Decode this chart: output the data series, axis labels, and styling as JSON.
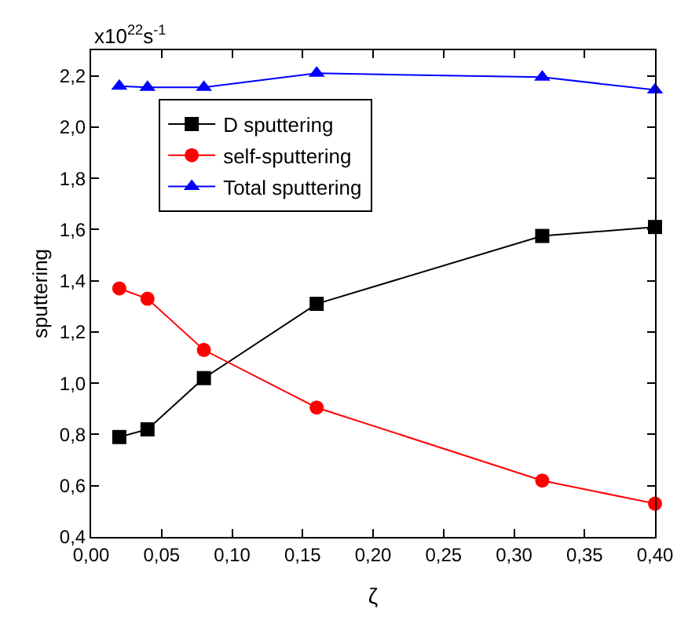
{
  "chart_data": {
    "type": "line",
    "xlabel": "ζ",
    "ylabel": "sputtering",
    "annotations": [
      "x10$^{22}$s$^{-1}$"
    ],
    "x": [
      0.02,
      0.04,
      0.08,
      0.16,
      0.32,
      0.4
    ],
    "series": [
      {
        "name": "D sputtering",
        "color": "#000000",
        "marker": "square",
        "values": [
          0.79,
          0.82,
          1.02,
          1.31,
          1.575,
          1.61
        ]
      },
      {
        "name": "self-sputtering",
        "color": "#ff0000",
        "marker": "circle",
        "values": [
          1.37,
          1.33,
          1.13,
          0.905,
          0.62,
          0.53
        ]
      },
      {
        "name": "Total sputtering",
        "color": "#0000ff",
        "marker": "triangle",
        "values": [
          2.16,
          2.155,
          2.155,
          2.21,
          2.195,
          2.145
        ]
      }
    ],
    "xlim": [
      0,
      0.4
    ],
    "ylim": [
      0.4,
      2.3
    ],
    "xticks": [
      {
        "value": 0,
        "label": "0,00"
      },
      {
        "value": 0.05,
        "label": "0,05"
      },
      {
        "value": 0.1,
        "label": "0,10"
      },
      {
        "value": 0.15,
        "label": "0,15"
      },
      {
        "value": 0.2,
        "label": "0,20"
      },
      {
        "value": 0.25,
        "label": "0,25"
      },
      {
        "value": 0.3,
        "label": "0,30"
      },
      {
        "value": 0.35,
        "label": "0,35"
      },
      {
        "value": 0.4,
        "label": "0,40"
      }
    ],
    "yticks": [
      {
        "value": 0.4,
        "label": "0,4"
      },
      {
        "value": 0.6,
        "label": "0,6"
      },
      {
        "value": 0.8,
        "label": "0,8"
      },
      {
        "value": 1.0,
        "label": "1,0"
      },
      {
        "value": 1.2,
        "label": "1,2"
      },
      {
        "value": 1.4,
        "label": "1,4"
      },
      {
        "value": 1.6,
        "label": "1,6"
      },
      {
        "value": 1.8,
        "label": "1,8"
      },
      {
        "value": 2.0,
        "label": "2,0"
      },
      {
        "value": 2.2,
        "label": "2,2"
      }
    ],
    "legend": "top left",
    "line_style": "solid"
  }
}
